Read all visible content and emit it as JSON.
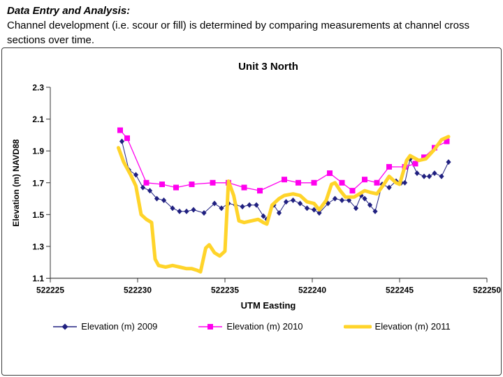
{
  "header": {
    "title": "Data Entry and Analysis:",
    "body": "Channel development (i.e. scour or fill) is determined by comparing measurements at channel cross sections over time."
  },
  "chart_data": {
    "type": "line",
    "title": "Unit 3 North",
    "xlabel": "UTM Easting",
    "ylabel": "Elevation (m) NAVD88",
    "xlim": [
      522225,
      522250
    ],
    "ylim": [
      1.1,
      2.3
    ],
    "x_ticks": [
      522225,
      522230,
      522235,
      522240,
      522245,
      522250
    ],
    "y_ticks": [
      1.1,
      1.3,
      1.5,
      1.7,
      1.9,
      2.1,
      2.3
    ],
    "grid": false,
    "legend_position": "bottom",
    "colors": {
      "s2009": "#202080",
      "s2010": "#FF00EE",
      "s2011": "#FFD42A"
    },
    "series": [
      {
        "name": "Elevation (m) 2009",
        "color": "#202080",
        "marker": "diamond",
        "line_width": 1,
        "points": [
          [
            522229.1,
            1.96
          ],
          [
            522229.5,
            1.78
          ],
          [
            522229.9,
            1.75
          ],
          [
            522230.3,
            1.67
          ],
          [
            522230.7,
            1.65
          ],
          [
            522231.1,
            1.6
          ],
          [
            522231.5,
            1.59
          ],
          [
            522232.0,
            1.54
          ],
          [
            522232.4,
            1.52
          ],
          [
            522232.8,
            1.52
          ],
          [
            522233.2,
            1.53
          ],
          [
            522233.8,
            1.51
          ],
          [
            522234.4,
            1.57
          ],
          [
            522234.8,
            1.54
          ],
          [
            522235.2,
            1.57
          ],
          [
            522235.6,
            1.56
          ],
          [
            522236.0,
            1.55
          ],
          [
            522236.4,
            1.56
          ],
          [
            522236.8,
            1.56
          ],
          [
            522237.2,
            1.49
          ],
          [
            522237.4,
            1.47
          ],
          [
            522237.8,
            1.56
          ],
          [
            522238.1,
            1.51
          ],
          [
            522238.5,
            1.58
          ],
          [
            522238.9,
            1.59
          ],
          [
            522239.3,
            1.57
          ],
          [
            522239.7,
            1.54
          ],
          [
            522240.1,
            1.53
          ],
          [
            522240.4,
            1.51
          ],
          [
            522240.9,
            1.57
          ],
          [
            522241.3,
            1.6
          ],
          [
            522241.7,
            1.59
          ],
          [
            522242.1,
            1.59
          ],
          [
            522242.5,
            1.54
          ],
          [
            522242.8,
            1.62
          ],
          [
            522243.0,
            1.6
          ],
          [
            522243.3,
            1.56
          ],
          [
            522243.6,
            1.52
          ],
          [
            522244.0,
            1.69
          ],
          [
            522244.4,
            1.67
          ],
          [
            522244.8,
            1.71
          ],
          [
            522245.1,
            1.7
          ],
          [
            522245.3,
            1.7
          ],
          [
            522245.6,
            1.85
          ],
          [
            522246.0,
            1.76
          ],
          [
            522246.4,
            1.74
          ],
          [
            522246.7,
            1.74
          ],
          [
            522247.0,
            1.76
          ],
          [
            522247.4,
            1.74
          ],
          [
            522247.8,
            1.83
          ]
        ]
      },
      {
        "name": "Elevation (m) 2010",
        "color": "#FF00EE",
        "marker": "square",
        "line_width": 1.3,
        "points": [
          [
            522229.0,
            2.03
          ],
          [
            522229.4,
            1.98
          ],
          [
            522230.5,
            1.7
          ],
          [
            522231.4,
            1.69
          ],
          [
            522232.2,
            1.67
          ],
          [
            522233.1,
            1.69
          ],
          [
            522234.3,
            1.7
          ],
          [
            522235.2,
            1.7
          ],
          [
            522236.1,
            1.67
          ],
          [
            522237.0,
            1.65
          ],
          [
            522238.4,
            1.72
          ],
          [
            522239.2,
            1.7
          ],
          [
            522240.1,
            1.7
          ],
          [
            522241.0,
            1.76
          ],
          [
            522241.7,
            1.7
          ],
          [
            522242.3,
            1.65
          ],
          [
            522243.0,
            1.72
          ],
          [
            522243.7,
            1.7
          ],
          [
            522244.4,
            1.8
          ],
          [
            522245.3,
            1.8
          ],
          [
            522245.9,
            1.82
          ],
          [
            522246.4,
            1.86
          ],
          [
            522247.0,
            1.92
          ],
          [
            522247.7,
            1.96
          ]
        ]
      },
      {
        "name": "Elevation (m) 2011",
        "color": "#FFD42A",
        "marker": "none",
        "line_width": 5,
        "points": [
          [
            522228.9,
            1.92
          ],
          [
            522229.2,
            1.83
          ],
          [
            522229.6,
            1.75
          ],
          [
            522229.9,
            1.68
          ],
          [
            522230.2,
            1.5
          ],
          [
            522230.5,
            1.47
          ],
          [
            522230.8,
            1.45
          ],
          [
            522231.0,
            1.22
          ],
          [
            522231.2,
            1.18
          ],
          [
            522231.6,
            1.17
          ],
          [
            522232.0,
            1.18
          ],
          [
            522232.4,
            1.17
          ],
          [
            522232.8,
            1.16
          ],
          [
            522233.1,
            1.16
          ],
          [
            522233.4,
            1.15
          ],
          [
            522233.6,
            1.14
          ],
          [
            522233.9,
            1.29
          ],
          [
            522234.1,
            1.31
          ],
          [
            522234.4,
            1.26
          ],
          [
            522234.7,
            1.24
          ],
          [
            522235.0,
            1.27
          ],
          [
            522235.2,
            1.71
          ],
          [
            522235.5,
            1.62
          ],
          [
            522235.8,
            1.46
          ],
          [
            522236.1,
            1.45
          ],
          [
            522236.5,
            1.46
          ],
          [
            522236.9,
            1.47
          ],
          [
            522237.2,
            1.45
          ],
          [
            522237.4,
            1.44
          ],
          [
            522237.7,
            1.56
          ],
          [
            522238.1,
            1.6
          ],
          [
            522238.4,
            1.62
          ],
          [
            522238.9,
            1.63
          ],
          [
            522239.3,
            1.62
          ],
          [
            522239.7,
            1.58
          ],
          [
            522240.1,
            1.57
          ],
          [
            522240.4,
            1.53
          ],
          [
            522240.8,
            1.59
          ],
          [
            522241.1,
            1.69
          ],
          [
            522241.3,
            1.7
          ],
          [
            522241.6,
            1.65
          ],
          [
            522241.9,
            1.61
          ],
          [
            522242.4,
            1.61
          ],
          [
            522243.0,
            1.65
          ],
          [
            522243.3,
            1.64
          ],
          [
            522243.7,
            1.63
          ],
          [
            522244.1,
            1.69
          ],
          [
            522244.4,
            1.74
          ],
          [
            522244.8,
            1.7
          ],
          [
            522245.0,
            1.69
          ],
          [
            522245.4,
            1.84
          ],
          [
            522245.6,
            1.87
          ],
          [
            522246.1,
            1.84
          ],
          [
            522246.5,
            1.85
          ],
          [
            522247.0,
            1.91
          ],
          [
            522247.4,
            1.97
          ],
          [
            522247.8,
            1.99
          ]
        ]
      }
    ]
  }
}
